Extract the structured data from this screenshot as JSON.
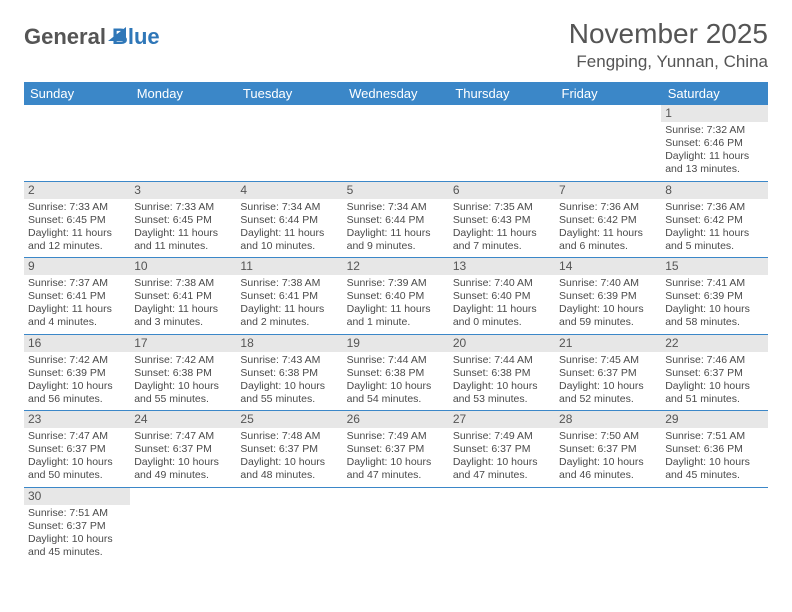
{
  "logo": {
    "part1": "General",
    "part2": "Blue"
  },
  "header": {
    "month_title": "November 2025",
    "location": "Fengping, Yunnan, China"
  },
  "colors": {
    "header_bg": "#3b87c8",
    "header_text": "#ffffff",
    "daynum_bg": "#e7e7e7",
    "border": "#3b87c8",
    "logo_accent": "#2f77b8",
    "text": "#4a4a4a"
  },
  "typography": {
    "month_title_fontsize": 28,
    "location_fontsize": 17,
    "dayheader_fontsize": 13,
    "cell_fontsize": 10.5
  },
  "day_headers": [
    "Sunday",
    "Monday",
    "Tuesday",
    "Wednesday",
    "Thursday",
    "Friday",
    "Saturday"
  ],
  "weeks": [
    [
      null,
      null,
      null,
      null,
      null,
      null,
      {
        "n": "1",
        "sr": "Sunrise: 7:32 AM",
        "ss": "Sunset: 6:46 PM",
        "d1": "Daylight: 11 hours",
        "d2": "and 13 minutes."
      }
    ],
    [
      {
        "n": "2",
        "sr": "Sunrise: 7:33 AM",
        "ss": "Sunset: 6:45 PM",
        "d1": "Daylight: 11 hours",
        "d2": "and 12 minutes."
      },
      {
        "n": "3",
        "sr": "Sunrise: 7:33 AM",
        "ss": "Sunset: 6:45 PM",
        "d1": "Daylight: 11 hours",
        "d2": "and 11 minutes."
      },
      {
        "n": "4",
        "sr": "Sunrise: 7:34 AM",
        "ss": "Sunset: 6:44 PM",
        "d1": "Daylight: 11 hours",
        "d2": "and 10 minutes."
      },
      {
        "n": "5",
        "sr": "Sunrise: 7:34 AM",
        "ss": "Sunset: 6:44 PM",
        "d1": "Daylight: 11 hours",
        "d2": "and 9 minutes."
      },
      {
        "n": "6",
        "sr": "Sunrise: 7:35 AM",
        "ss": "Sunset: 6:43 PM",
        "d1": "Daylight: 11 hours",
        "d2": "and 7 minutes."
      },
      {
        "n": "7",
        "sr": "Sunrise: 7:36 AM",
        "ss": "Sunset: 6:42 PM",
        "d1": "Daylight: 11 hours",
        "d2": "and 6 minutes."
      },
      {
        "n": "8",
        "sr": "Sunrise: 7:36 AM",
        "ss": "Sunset: 6:42 PM",
        "d1": "Daylight: 11 hours",
        "d2": "and 5 minutes."
      }
    ],
    [
      {
        "n": "9",
        "sr": "Sunrise: 7:37 AM",
        "ss": "Sunset: 6:41 PM",
        "d1": "Daylight: 11 hours",
        "d2": "and 4 minutes."
      },
      {
        "n": "10",
        "sr": "Sunrise: 7:38 AM",
        "ss": "Sunset: 6:41 PM",
        "d1": "Daylight: 11 hours",
        "d2": "and 3 minutes."
      },
      {
        "n": "11",
        "sr": "Sunrise: 7:38 AM",
        "ss": "Sunset: 6:41 PM",
        "d1": "Daylight: 11 hours",
        "d2": "and 2 minutes."
      },
      {
        "n": "12",
        "sr": "Sunrise: 7:39 AM",
        "ss": "Sunset: 6:40 PM",
        "d1": "Daylight: 11 hours",
        "d2": "and 1 minute."
      },
      {
        "n": "13",
        "sr": "Sunrise: 7:40 AM",
        "ss": "Sunset: 6:40 PM",
        "d1": "Daylight: 11 hours",
        "d2": "and 0 minutes."
      },
      {
        "n": "14",
        "sr": "Sunrise: 7:40 AM",
        "ss": "Sunset: 6:39 PM",
        "d1": "Daylight: 10 hours",
        "d2": "and 59 minutes."
      },
      {
        "n": "15",
        "sr": "Sunrise: 7:41 AM",
        "ss": "Sunset: 6:39 PM",
        "d1": "Daylight: 10 hours",
        "d2": "and 58 minutes."
      }
    ],
    [
      {
        "n": "16",
        "sr": "Sunrise: 7:42 AM",
        "ss": "Sunset: 6:39 PM",
        "d1": "Daylight: 10 hours",
        "d2": "and 56 minutes."
      },
      {
        "n": "17",
        "sr": "Sunrise: 7:42 AM",
        "ss": "Sunset: 6:38 PM",
        "d1": "Daylight: 10 hours",
        "d2": "and 55 minutes."
      },
      {
        "n": "18",
        "sr": "Sunrise: 7:43 AM",
        "ss": "Sunset: 6:38 PM",
        "d1": "Daylight: 10 hours",
        "d2": "and 55 minutes."
      },
      {
        "n": "19",
        "sr": "Sunrise: 7:44 AM",
        "ss": "Sunset: 6:38 PM",
        "d1": "Daylight: 10 hours",
        "d2": "and 54 minutes."
      },
      {
        "n": "20",
        "sr": "Sunrise: 7:44 AM",
        "ss": "Sunset: 6:38 PM",
        "d1": "Daylight: 10 hours",
        "d2": "and 53 minutes."
      },
      {
        "n": "21",
        "sr": "Sunrise: 7:45 AM",
        "ss": "Sunset: 6:37 PM",
        "d1": "Daylight: 10 hours",
        "d2": "and 52 minutes."
      },
      {
        "n": "22",
        "sr": "Sunrise: 7:46 AM",
        "ss": "Sunset: 6:37 PM",
        "d1": "Daylight: 10 hours",
        "d2": "and 51 minutes."
      }
    ],
    [
      {
        "n": "23",
        "sr": "Sunrise: 7:47 AM",
        "ss": "Sunset: 6:37 PM",
        "d1": "Daylight: 10 hours",
        "d2": "and 50 minutes."
      },
      {
        "n": "24",
        "sr": "Sunrise: 7:47 AM",
        "ss": "Sunset: 6:37 PM",
        "d1": "Daylight: 10 hours",
        "d2": "and 49 minutes."
      },
      {
        "n": "25",
        "sr": "Sunrise: 7:48 AM",
        "ss": "Sunset: 6:37 PM",
        "d1": "Daylight: 10 hours",
        "d2": "and 48 minutes."
      },
      {
        "n": "26",
        "sr": "Sunrise: 7:49 AM",
        "ss": "Sunset: 6:37 PM",
        "d1": "Daylight: 10 hours",
        "d2": "and 47 minutes."
      },
      {
        "n": "27",
        "sr": "Sunrise: 7:49 AM",
        "ss": "Sunset: 6:37 PM",
        "d1": "Daylight: 10 hours",
        "d2": "and 47 minutes."
      },
      {
        "n": "28",
        "sr": "Sunrise: 7:50 AM",
        "ss": "Sunset: 6:37 PM",
        "d1": "Daylight: 10 hours",
        "d2": "and 46 minutes."
      },
      {
        "n": "29",
        "sr": "Sunrise: 7:51 AM",
        "ss": "Sunset: 6:36 PM",
        "d1": "Daylight: 10 hours",
        "d2": "and 45 minutes."
      }
    ],
    [
      {
        "n": "30",
        "sr": "Sunrise: 7:51 AM",
        "ss": "Sunset: 6:37 PM",
        "d1": "Daylight: 10 hours",
        "d2": "and 45 minutes."
      },
      null,
      null,
      null,
      null,
      null,
      null
    ]
  ]
}
